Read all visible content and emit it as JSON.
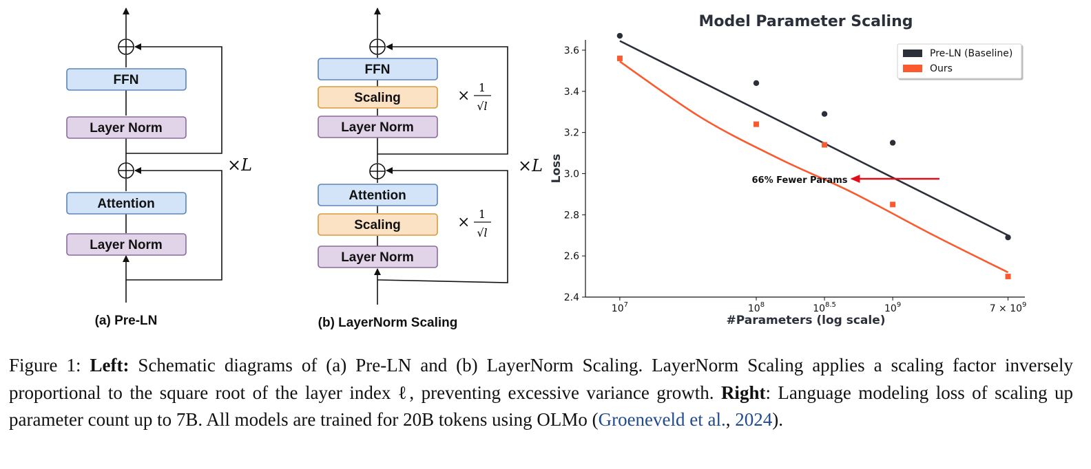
{
  "diagram_a": {
    "boxes": [
      "FFN",
      "Layer Norm",
      "Attention",
      "Layer Norm"
    ],
    "repeat": "×L",
    "caption": "(a) Pre-LN"
  },
  "diagram_b": {
    "boxes": [
      "FFN",
      "Scaling",
      "Layer Norm",
      "Attention",
      "Scaling",
      "Layer Norm"
    ],
    "repeat": "×L",
    "scale_factor": "× 1/√l",
    "caption": "(b) LayerNorm Scaling"
  },
  "colors": {
    "blue_fill": "#d3e4f8",
    "blue_stroke": "#5b84b8",
    "purple_fill": "#e1d3e8",
    "purple_stroke": "#8a6a9a",
    "orange_fill": "#fbe2c4",
    "orange_stroke": "#d89a3a",
    "baseline": "#2b2f3a",
    "ours": "#fb5a2e",
    "arrow": "#e0101b"
  },
  "chart_data": {
    "type": "scatter",
    "title": "Model Parameter Scaling",
    "xlabel": "#Parameters (log scale)",
    "ylabel": "Loss",
    "x_scale": "log",
    "x_ticks": [
      {
        "value": 10000000,
        "base": "10",
        "exp": "7"
      },
      {
        "value": 100000000,
        "base": "10",
        "exp": "8"
      },
      {
        "value": 316227766,
        "base": "10",
        "exp": "8.5"
      },
      {
        "value": 1000000000,
        "base": "10",
        "exp": "9"
      },
      {
        "value": 7000000000,
        "base": "7 × 10",
        "exp": "9"
      }
    ],
    "y_ticks": [
      "2.4",
      "2.6",
      "2.8",
      "3.0",
      "3.2",
      "3.4",
      "3.6"
    ],
    "ylim": [
      2.4,
      3.65
    ],
    "legend_position": "top-right",
    "series": [
      {
        "name": "Pre-LN (Baseline)",
        "marker": "circle",
        "x": [
          10000000,
          100000000,
          316227766,
          1000000000,
          7000000000
        ],
        "y": [
          3.67,
          3.44,
          3.29,
          3.15,
          2.69
        ],
        "fit": [
          [
            10000000,
            3.645
          ],
          [
            7000000000,
            2.7
          ]
        ]
      },
      {
        "name": "Ours",
        "marker": "square",
        "x": [
          10000000,
          100000000,
          316227766,
          1000000000,
          7000000000
        ],
        "y": [
          3.56,
          3.24,
          3.14,
          2.85,
          2.5
        ],
        "fit": [
          [
            10000000,
            3.545
          ],
          [
            40000000,
            3.27
          ],
          [
            150000000,
            3.07
          ],
          [
            500000000,
            2.91
          ],
          [
            2000000000,
            2.7
          ],
          [
            7000000000,
            2.52
          ]
        ]
      }
    ],
    "annotation": {
      "text": "66% Fewer Params",
      "from_x": 2200000000,
      "to_x": 500000000,
      "y": 2.975
    }
  },
  "caption": {
    "prefix": "Figure 1: ",
    "left_label": "Left:",
    "left_text": " Schematic diagrams of (a) Pre-LN and (b) LayerNorm Scaling. LayerNorm Scaling applies a scaling factor inversely proportional to the square root of the layer index ℓ, preventing excessive variance growth. ",
    "right_label": "Right",
    "right_text": ": Language modeling loss of scaling up parameter count up to 7B. All models are trained for 20B tokens using OLMo (",
    "cite_text": "Groeneveld et al.",
    "cite_sep": ", ",
    "cite_year": "2024",
    "suffix": ")."
  }
}
